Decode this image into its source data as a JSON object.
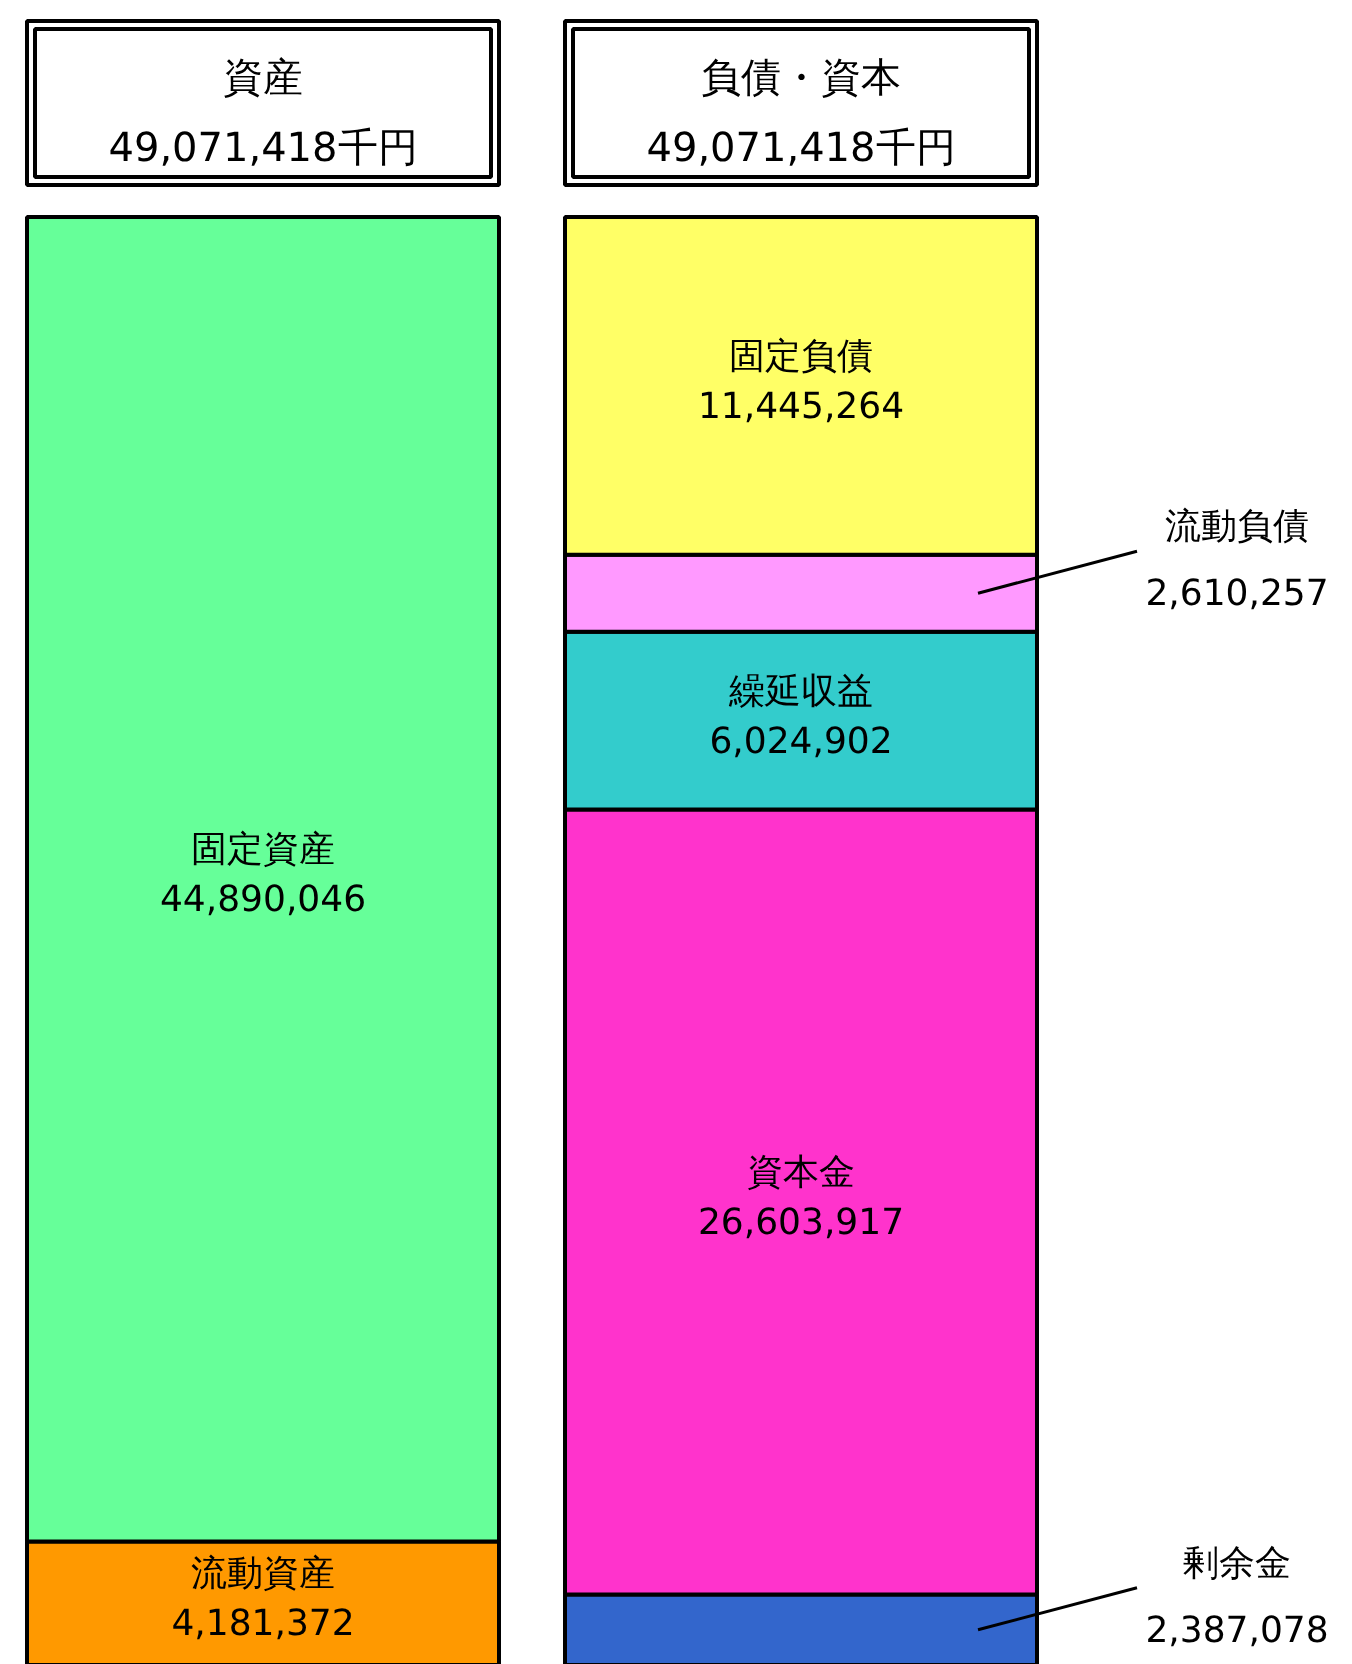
{
  "chart_data": {
    "type": "bar",
    "stacked": true,
    "categories": [
      "資産",
      "負債・資本"
    ],
    "totals": [
      "49,071,418千円",
      "49,071,418千円"
    ],
    "series": [
      {
        "name": "流動資産",
        "color": "#ff9900",
        "values": [
          4181372,
          null
        ],
        "value_labels": [
          "4,181,372",
          null
        ]
      },
      {
        "name": "固定資産",
        "color": "#66ff99",
        "values": [
          44890046,
          null
        ],
        "value_labels": [
          "44,890,046",
          null
        ]
      },
      {
        "name": "剰余金",
        "color": "#3366cc",
        "values": [
          null,
          2387078
        ],
        "value_labels": [
          null,
          "2,387,078"
        ]
      },
      {
        "name": "資本金",
        "color": "#ff33cc",
        "values": [
          null,
          26603917
        ],
        "value_labels": [
          null,
          "26,603,917"
        ]
      },
      {
        "name": "繰延収益",
        "color": "#33cccc",
        "values": [
          null,
          6024902
        ],
        "value_labels": [
          null,
          "6,024,902"
        ]
      },
      {
        "name": "流動負債",
        "color": "#ff99ff",
        "values": [
          null,
          2610257
        ],
        "value_labels": [
          null,
          "2,610,257"
        ]
      },
      {
        "name": "固定負債",
        "color": "#ffff66",
        "values": [
          null,
          11445264
        ],
        "value_labels": [
          null,
          "11,445,264"
        ]
      }
    ]
  }
}
